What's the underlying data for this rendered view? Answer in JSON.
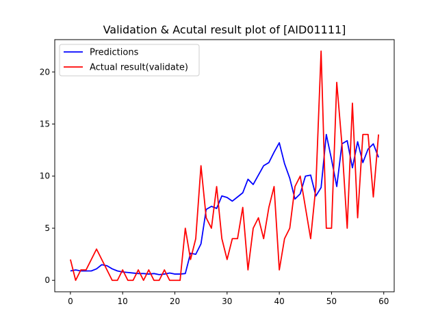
{
  "chart_data": {
    "type": "line",
    "title": "Validation & Acutal result plot of [AID01111]",
    "xlabel": "",
    "ylabel": "",
    "xlim": [
      -3,
      62
    ],
    "ylim": [
      -1.1,
      23.1
    ],
    "xticks": [
      0,
      10,
      20,
      30,
      40,
      50,
      60
    ],
    "yticks": [
      0,
      5,
      10,
      15,
      20
    ],
    "grid": false,
    "legend_position": "top-left",
    "x": [
      0,
      1,
      2,
      3,
      4,
      5,
      6,
      7,
      8,
      9,
      10,
      11,
      12,
      13,
      14,
      15,
      16,
      17,
      18,
      19,
      20,
      21,
      22,
      23,
      24,
      25,
      26,
      27,
      28,
      29,
      30,
      31,
      32,
      33,
      34,
      35,
      36,
      37,
      38,
      39,
      40,
      41,
      42,
      43,
      44,
      45,
      46,
      47,
      48,
      49,
      50,
      51,
      52,
      53,
      54,
      55,
      56,
      57,
      58,
      59
    ],
    "series": [
      {
        "name": "Predictions",
        "color": "#0000ff",
        "values": [
          0.9,
          1.0,
          0.9,
          0.9,
          0.9,
          1.1,
          1.5,
          1.4,
          1.1,
          0.9,
          0.8,
          0.75,
          0.7,
          0.65,
          0.65,
          0.6,
          0.65,
          0.55,
          0.6,
          0.7,
          0.6,
          0.6,
          0.65,
          2.6,
          2.5,
          3.5,
          6.8,
          7.1,
          6.9,
          8.1,
          7.95,
          7.6,
          8.0,
          8.4,
          9.7,
          9.2,
          10.1,
          11.0,
          11.3,
          12.3,
          13.2,
          11.2,
          9.8,
          7.8,
          8.3,
          10.0,
          10.1,
          8.1,
          8.9,
          14.0,
          11.6,
          9.0,
          13.1,
          13.4,
          10.8,
          13.3,
          11.3,
          12.6,
          13.1,
          11.8
        ]
      },
      {
        "name": "Actual result(validate)",
        "color": "#ff0000",
        "values": [
          2,
          0,
          1,
          1,
          2,
          3,
          2,
          1,
          0,
          0,
          1,
          0,
          0,
          1,
          0,
          1,
          0,
          0,
          1,
          0,
          0,
          0,
          5,
          2,
          4,
          11,
          6,
          5,
          9,
          4,
          2,
          4,
          4,
          7,
          1,
          5,
          6,
          4,
          7,
          9,
          1,
          4,
          5,
          9,
          10,
          7,
          4,
          9,
          22,
          5,
          5,
          19,
          13,
          5,
          17,
          6,
          14,
          14,
          8,
          14
        ]
      }
    ]
  }
}
